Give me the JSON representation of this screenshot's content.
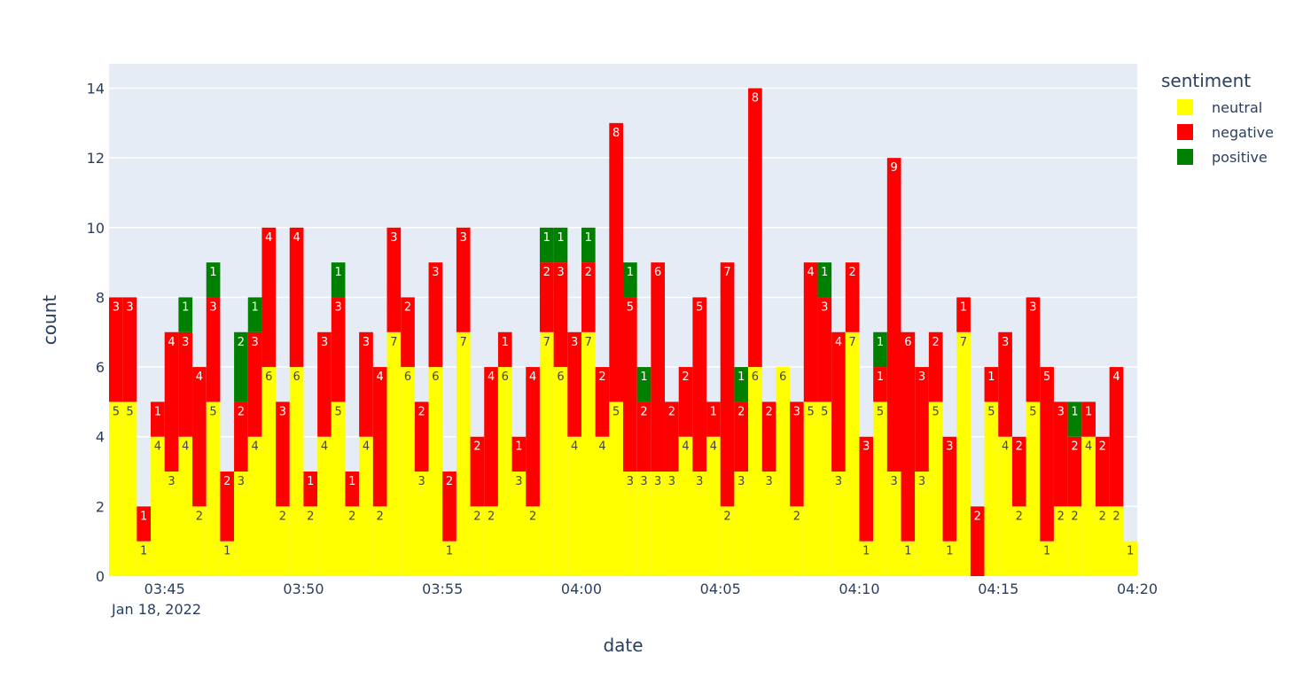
{
  "chart_data": {
    "type": "bar",
    "barmode": "stack",
    "xlabel": "date",
    "ylabel": "count",
    "ylim": [
      0,
      14.7
    ],
    "yticks": [
      0,
      2,
      4,
      6,
      8,
      10,
      12,
      14
    ],
    "x_start": "2022-01-18 03:43",
    "x_end": "2022-01-18 04:20",
    "bin_minutes": 0.5,
    "xtick_labels": [
      "03:45",
      "03:50",
      "03:55",
      "04:00",
      "04:05",
      "04:10",
      "04:15",
      "04:20"
    ],
    "xtick_sublabel": "Jan 18, 2022",
    "legend": {
      "title": "sentiment",
      "position": "top-right"
    },
    "series": [
      {
        "name": "neutral",
        "color": "#ffff00",
        "values": [
          5,
          5,
          1,
          4,
          3,
          4,
          2,
          5,
          1,
          3,
          4,
          6,
          2,
          6,
          2,
          4,
          5,
          2,
          4,
          2,
          7,
          6,
          3,
          6,
          1,
          7,
          2,
          2,
          6,
          3,
          2,
          7,
          6,
          4,
          7,
          4,
          5,
          3,
          3,
          3,
          3,
          4,
          3,
          4,
          2,
          3,
          6,
          3,
          6,
          2,
          5,
          5,
          3,
          7,
          1,
          5,
          3,
          1,
          3,
          5,
          1,
          7,
          0,
          5,
          4,
          2,
          5,
          1,
          2,
          2,
          4,
          2,
          2,
          1
        ]
      },
      {
        "name": "negative",
        "color": "#ff0000",
        "values": [
          3,
          3,
          1,
          1,
          4,
          3,
          4,
          3,
          2,
          2,
          3,
          4,
          3,
          4,
          1,
          3,
          3,
          1,
          3,
          4,
          3,
          2,
          2,
          3,
          2,
          3,
          2,
          4,
          1,
          1,
          4,
          2,
          3,
          3,
          2,
          2,
          8,
          5,
          2,
          6,
          2,
          2,
          5,
          1,
          7,
          2,
          8,
          2,
          0,
          3,
          4,
          3,
          4,
          2,
          3,
          1,
          9,
          6,
          3,
          2,
          3,
          1,
          2,
          1,
          3,
          2,
          3,
          5,
          3,
          2,
          1,
          2,
          4,
          0
        ]
      },
      {
        "name": "positive",
        "color": "#008000",
        "values": [
          0,
          0,
          0,
          0,
          0,
          1,
          0,
          1,
          0,
          2,
          1,
          0,
          0,
          0,
          0,
          0,
          1,
          0,
          0,
          0,
          0,
          0,
          0,
          0,
          0,
          0,
          0,
          0,
          0,
          0,
          0,
          1,
          1,
          0,
          1,
          0,
          0,
          1,
          1,
          0,
          0,
          0,
          0,
          0,
          0,
          1,
          0,
          0,
          0,
          0,
          0,
          1,
          0,
          0,
          0,
          1,
          0,
          0,
          0,
          0,
          0,
          0,
          0,
          0,
          0,
          0,
          0,
          0,
          0,
          1,
          0,
          0,
          0,
          0
        ]
      }
    ]
  }
}
